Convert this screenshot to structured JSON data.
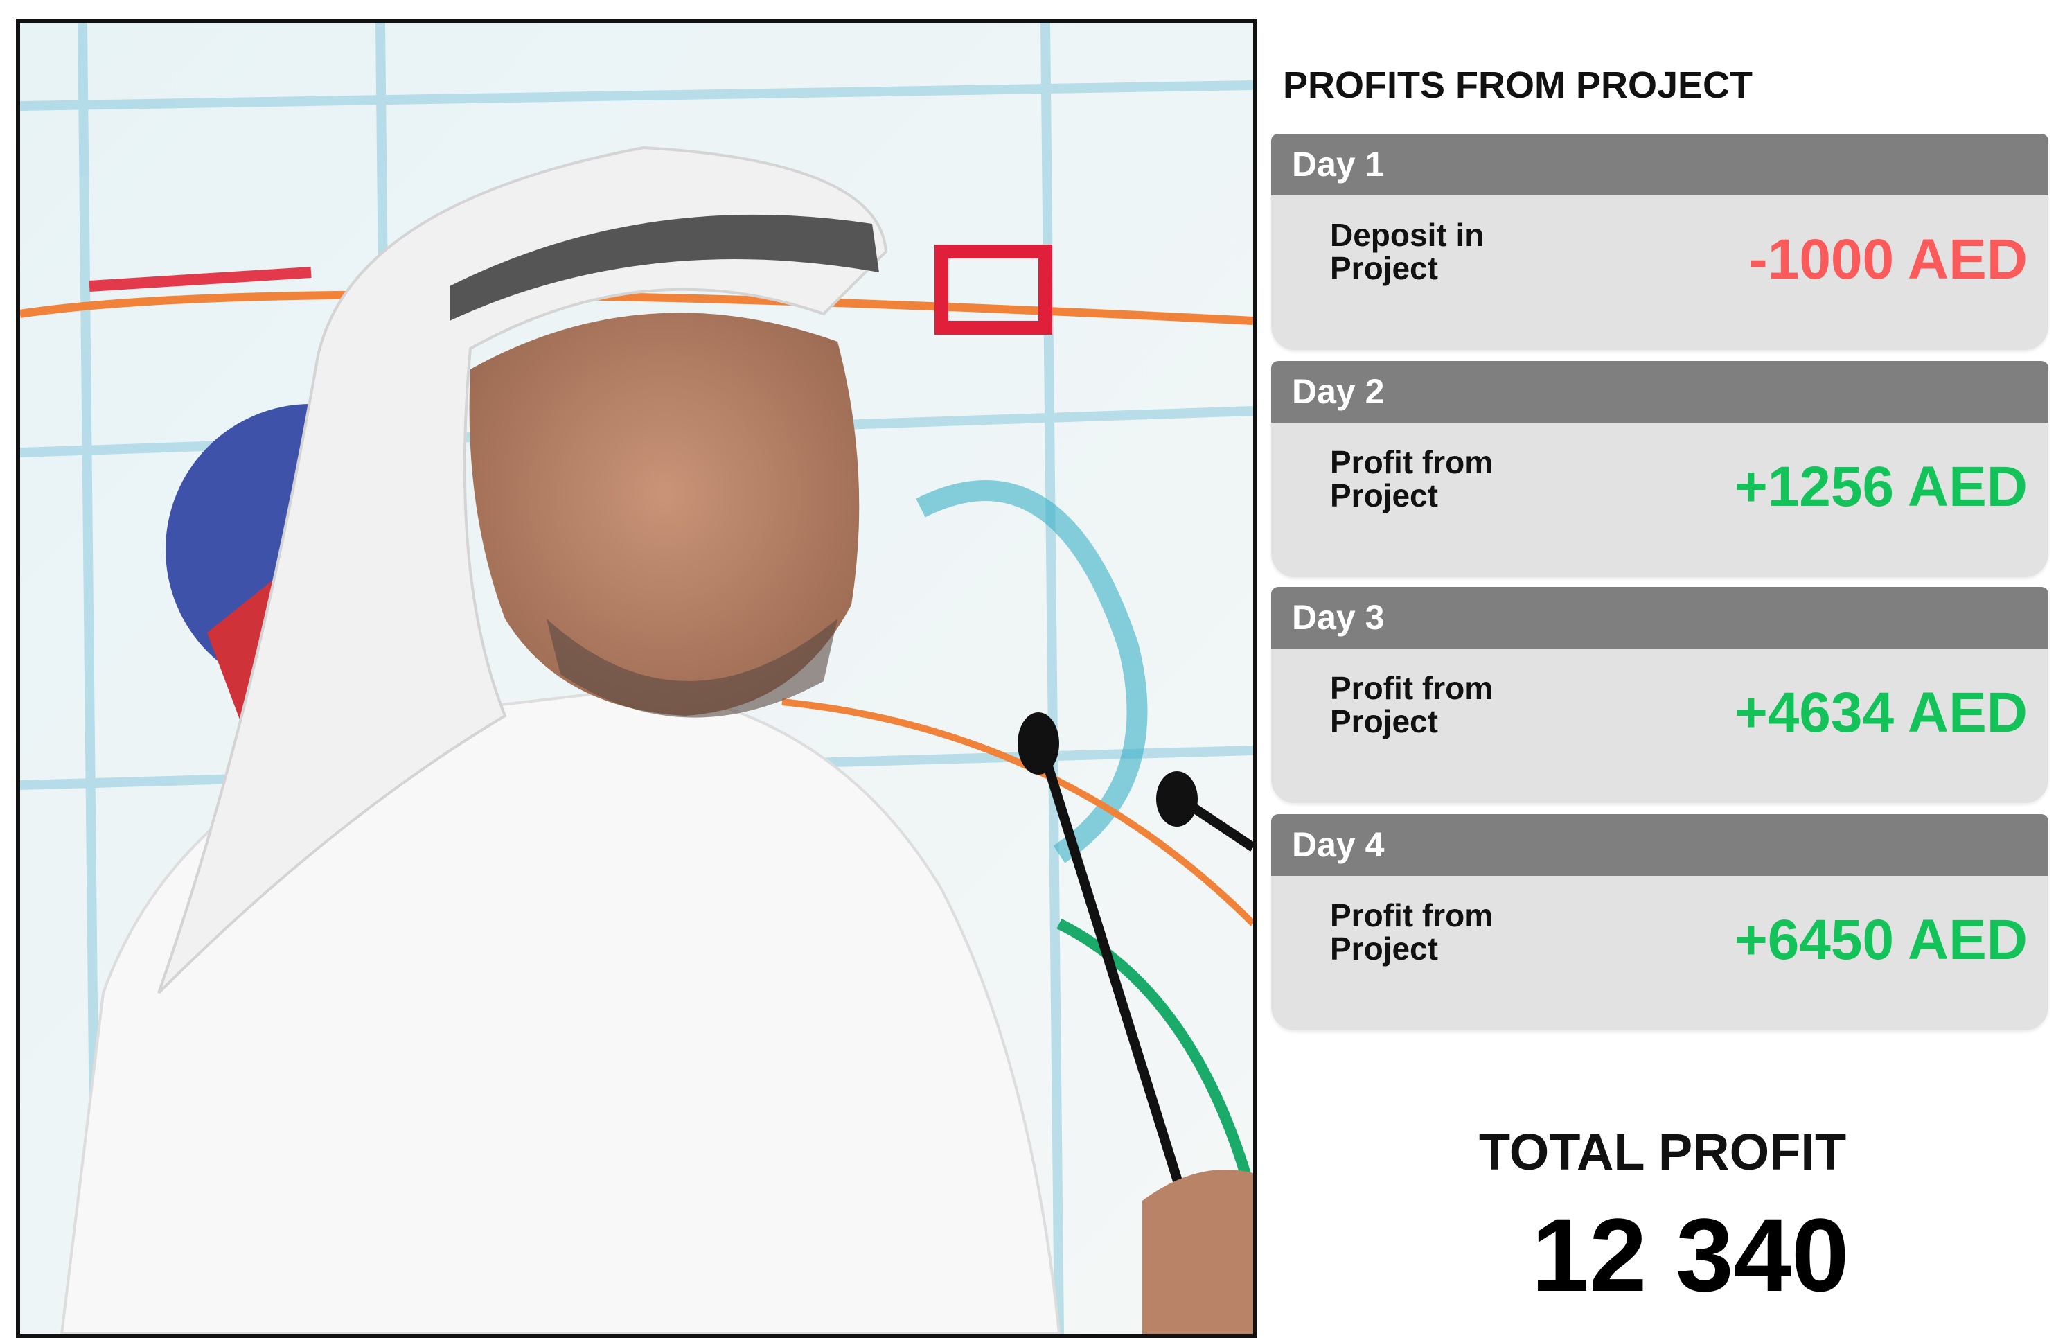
{
  "title": "PROFITS FROM PROJECT",
  "colors": {
    "header": "#7f7f7f",
    "card": "#e2e2e2",
    "negative": "#fa5a5a",
    "positive": "#14c25a"
  },
  "photo": {
    "subject": "speaker-at-microphone"
  },
  "days": [
    {
      "day": "Day 1",
      "label": "Deposit in Project",
      "amount": "-1000 AED",
      "sign": "negative"
    },
    {
      "day": "Day 2",
      "label": "Profit from Project",
      "amount": "+1256 AED",
      "sign": "positive"
    },
    {
      "day": "Day 3",
      "label": "Profit from Project",
      "amount": "+4634 AED",
      "sign": "positive"
    },
    {
      "day": "Day 4",
      "label": "Profit from Project",
      "amount": "+6450 AED",
      "sign": "positive"
    }
  ],
  "total": {
    "label": "TOTAL PROFIT",
    "value": "12 340"
  }
}
